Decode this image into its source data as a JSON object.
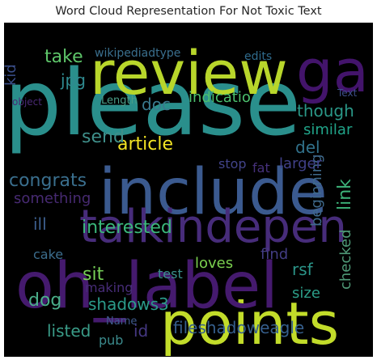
{
  "chart_data": {
    "type": "word-cloud",
    "title": "Word Cloud Representation For Not Toxic Text",
    "background": "#000000",
    "palette": "viridis",
    "words": [
      {
        "text": "please",
        "color": "#2a8f8c",
        "rotate": 0
      },
      {
        "text": "include",
        "color": "#3b5a8f",
        "rotate": 0
      },
      {
        "text": "review",
        "color": "#b8d62b",
        "rotate": 0
      },
      {
        "text": "points",
        "color": "#c2dc2a",
        "rotate": 0
      },
      {
        "text": "oh_label",
        "color": "#451a6e",
        "rotate": 0
      },
      {
        "text": "talkindepen",
        "color": "#472c7a",
        "rotate": 0
      },
      {
        "text": "ga",
        "color": "#43146b",
        "rotate": 0
      },
      {
        "text": "article",
        "color": "#f3e524",
        "rotate": 0
      },
      {
        "text": "interested",
        "color": "#3bb87b",
        "rotate": 0
      },
      {
        "text": "fileshadoweagle",
        "color": "#365f8d",
        "rotate": 0
      },
      {
        "text": "congrats",
        "color": "#3a6f8e",
        "rotate": 0
      },
      {
        "text": "shadows3",
        "color": "#2b9b8a",
        "rotate": 0
      },
      {
        "text": "though",
        "color": "#2a9787",
        "rotate": 0
      },
      {
        "text": "take",
        "color": "#5ec66a",
        "rotate": 0
      },
      {
        "text": "jpg",
        "color": "#2f8a90",
        "rotate": 0
      },
      {
        "text": "doc",
        "color": "#3a7a8e",
        "rotate": 0
      },
      {
        "text": "indicatio",
        "color": "#4cc06e",
        "rotate": 0
      },
      {
        "text": "send",
        "color": "#3f8f8a",
        "rotate": 0
      },
      {
        "text": "del",
        "color": "#31728c",
        "rotate": 0
      },
      {
        "text": "similar",
        "color": "#21a489",
        "rotate": 0
      },
      {
        "text": "link",
        "color": "#3db47a",
        "rotate": 90
      },
      {
        "text": "beginning",
        "color": "#3f6a8c",
        "rotate": 90
      },
      {
        "text": "checked",
        "color": "#4f9b78",
        "rotate": 90
      },
      {
        "text": "kid",
        "color": "#3b4f8b",
        "rotate": 90
      },
      {
        "text": "sit",
        "color": "#76d056",
        "rotate": 0
      },
      {
        "text": "loves",
        "color": "#7bd04f",
        "rotate": 0
      },
      {
        "text": "dog",
        "color": "#4aae8a",
        "rotate": 0
      },
      {
        "text": "listed",
        "color": "#3a9c88",
        "rotate": 0
      },
      {
        "text": "cake",
        "color": "#3c6e8e",
        "rotate": 0
      },
      {
        "text": "ill",
        "color": "#3d5f8e",
        "rotate": 0
      },
      {
        "text": "find",
        "color": "#433d84",
        "rotate": 0
      },
      {
        "text": "rsf",
        "color": "#2b9488",
        "rotate": 0
      },
      {
        "text": "size",
        "color": "#2c9e88",
        "rotate": 0
      },
      {
        "text": "id",
        "color": "#453882",
        "rotate": 0
      },
      {
        "text": "pub",
        "color": "#3b8a8c",
        "rotate": 0
      },
      {
        "text": "test",
        "color": "#3a8f8b",
        "rotate": 0
      },
      {
        "text": "making",
        "color": "#472c78",
        "rotate": 0
      },
      {
        "text": "stop",
        "color": "#42448a",
        "rotate": 0
      },
      {
        "text": "fat",
        "color": "#46317b",
        "rotate": 0
      },
      {
        "text": "larger",
        "color": "#404088",
        "rotate": 0
      },
      {
        "text": "something",
        "color": "#472a72",
        "rotate": 0
      },
      {
        "text": "edits",
        "color": "#2f6b8d",
        "rotate": 0
      },
      {
        "text": "wikipediadtype",
        "color": "#3a6f8e",
        "rotate": 0
      },
      {
        "text": "Length",
        "color": "#4a9e88",
        "rotate": 0
      },
      {
        "text": "object",
        "color": "#4a2a76",
        "rotate": 0
      },
      {
        "text": "Text",
        "color": "#3d4f8b",
        "rotate": 0
      },
      {
        "text": "Name",
        "color": "#3e5a8c",
        "rotate": 0
      }
    ]
  }
}
